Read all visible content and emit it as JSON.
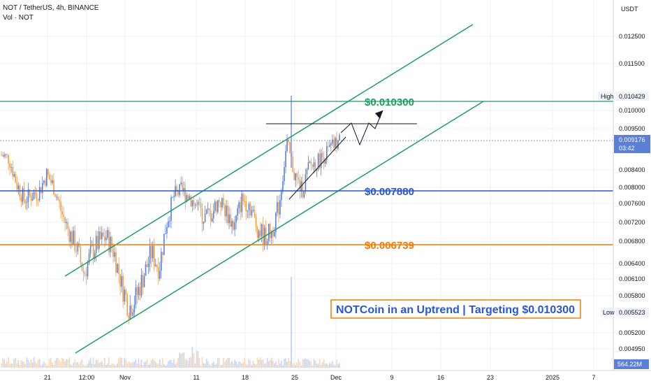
{
  "header": {
    "symbol_line": "NOT / TetherUS, 4h, BINANCE",
    "volume_label": "Vol · NOT"
  },
  "axis": {
    "currency": "USDT",
    "volume_badge": "564.22M"
  },
  "colors": {
    "up": "#5b7fd6",
    "down": "#f0a04b",
    "green": "#1e9e5e",
    "blue": "#2a56d6",
    "orange": "#f57c00",
    "grid": "#eef0f3"
  },
  "price_ticks": [
    "0.012500",
    "0.011500",
    "0.010000",
    "0.009500",
    "0.008400",
    "0.008000",
    "0.007600",
    "0.007200",
    "0.006800",
    "0.006400",
    "0.006100",
    "0.005800",
    "0.005200",
    "0.004950"
  ],
  "price_badges": {
    "high_label": "High",
    "high_value": "0.010429",
    "current_value": "0.009176",
    "current_time": "03:42",
    "low_label": "Low",
    "low_value": "0.005523"
  },
  "x_ticks": [
    "21",
    "12:00",
    "Nov",
    "11",
    "18",
    "25",
    "Dec",
    "9",
    "16",
    "23",
    "2025",
    "7"
  ],
  "levels": {
    "target": "$0.010300",
    "resistance": "$0.007880",
    "support": "$0.006739"
  },
  "annotation": "NOTCoin in an Uptrend | Targeting $0.010300",
  "chart_data": {
    "type": "candlestick",
    "symbol": "NOT / TetherUS",
    "interval": "4h",
    "exchange": "BINANCE",
    "y_axis_ticks": [
      0.0125,
      0.0115,
      0.01,
      0.0095,
      0.0084,
      0.008,
      0.0076,
      0.0072,
      0.0068,
      0.0064,
      0.0061,
      0.0058,
      0.0052,
      0.00495
    ],
    "high": 0.010429,
    "low": 0.005523,
    "last": 0.009176,
    "horizontal_levels": [
      0.0103,
      0.00788,
      0.006739
    ],
    "close_path": [
      0.0088,
      0.0087,
      0.0081,
      0.0077,
      0.0078,
      0.0079,
      0.0083,
      0.008,
      0.0074,
      0.007,
      0.0067,
      0.0062,
      0.0066,
      0.0068,
      0.0069,
      0.0066,
      0.006,
      0.0056,
      0.0058,
      0.0062,
      0.0066,
      0.0063,
      0.0072,
      0.0078,
      0.0079,
      0.0078,
      0.0075,
      0.0073,
      0.0074,
      0.0077,
      0.0074,
      0.0071,
      0.0077,
      0.0076,
      0.0071,
      0.0069,
      0.007,
      0.0076,
      0.0091,
      0.0083,
      0.0079,
      0.0085,
      0.0086,
      0.0088,
      0.009,
      0.00918
    ],
    "volume_spike": 564.22
  }
}
